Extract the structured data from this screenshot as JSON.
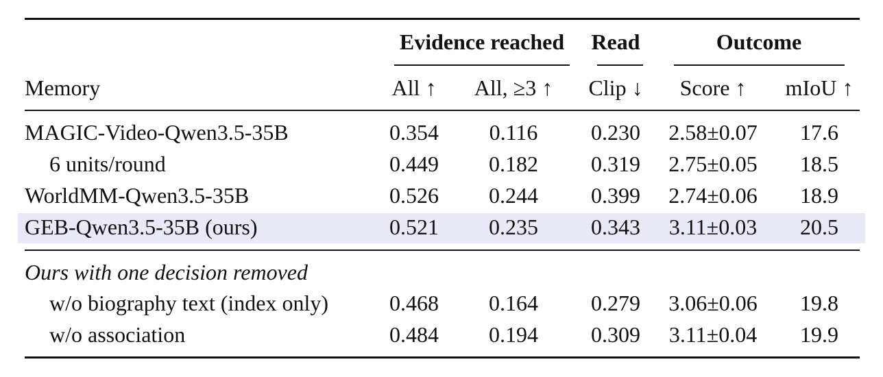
{
  "header": {
    "groups": {
      "evidence": "Evidence reached",
      "read": "Read",
      "outcome": "Outcome"
    },
    "memory": "Memory",
    "cols": {
      "all": "All ↑",
      "all3": "All, ≥3 ↑",
      "clip": "Clip ↓",
      "score": "Score ↑",
      "miou": "mIoU ↑"
    }
  },
  "rows": [
    {
      "name": "MAGIC-Video-Qwen3.5-35B",
      "all": "0.354",
      "all3": "0.116",
      "clip": "0.230",
      "score": "2.58±0.07",
      "miou": "17.6"
    },
    {
      "name": "6 units/round",
      "all": "0.449",
      "all3": "0.182",
      "clip": "0.319",
      "score": "2.75±0.05",
      "miou": "18.5"
    },
    {
      "name": "WorldMM-Qwen3.5-35B",
      "all": "0.526",
      "all3": "0.244",
      "clip": "0.399",
      "score": "2.74±0.06",
      "miou": "18.9"
    },
    {
      "name": "GEB-Qwen3.5-35B (ours)",
      "all": "0.521",
      "all3": "0.235",
      "clip": "0.343",
      "score": "3.11±0.03",
      "miou": "20.5"
    }
  ],
  "ablation": {
    "title": "Ours with one decision removed",
    "rows": [
      {
        "name": "w/o biography text (index only)",
        "all": "0.468",
        "all3": "0.164",
        "clip": "0.279",
        "score": "3.06±0.06",
        "miou": "19.8"
      },
      {
        "name": "w/o association",
        "all": "0.484",
        "all3": "0.194",
        "clip": "0.309",
        "score": "3.11±0.04",
        "miou": "19.9"
      }
    ]
  }
}
